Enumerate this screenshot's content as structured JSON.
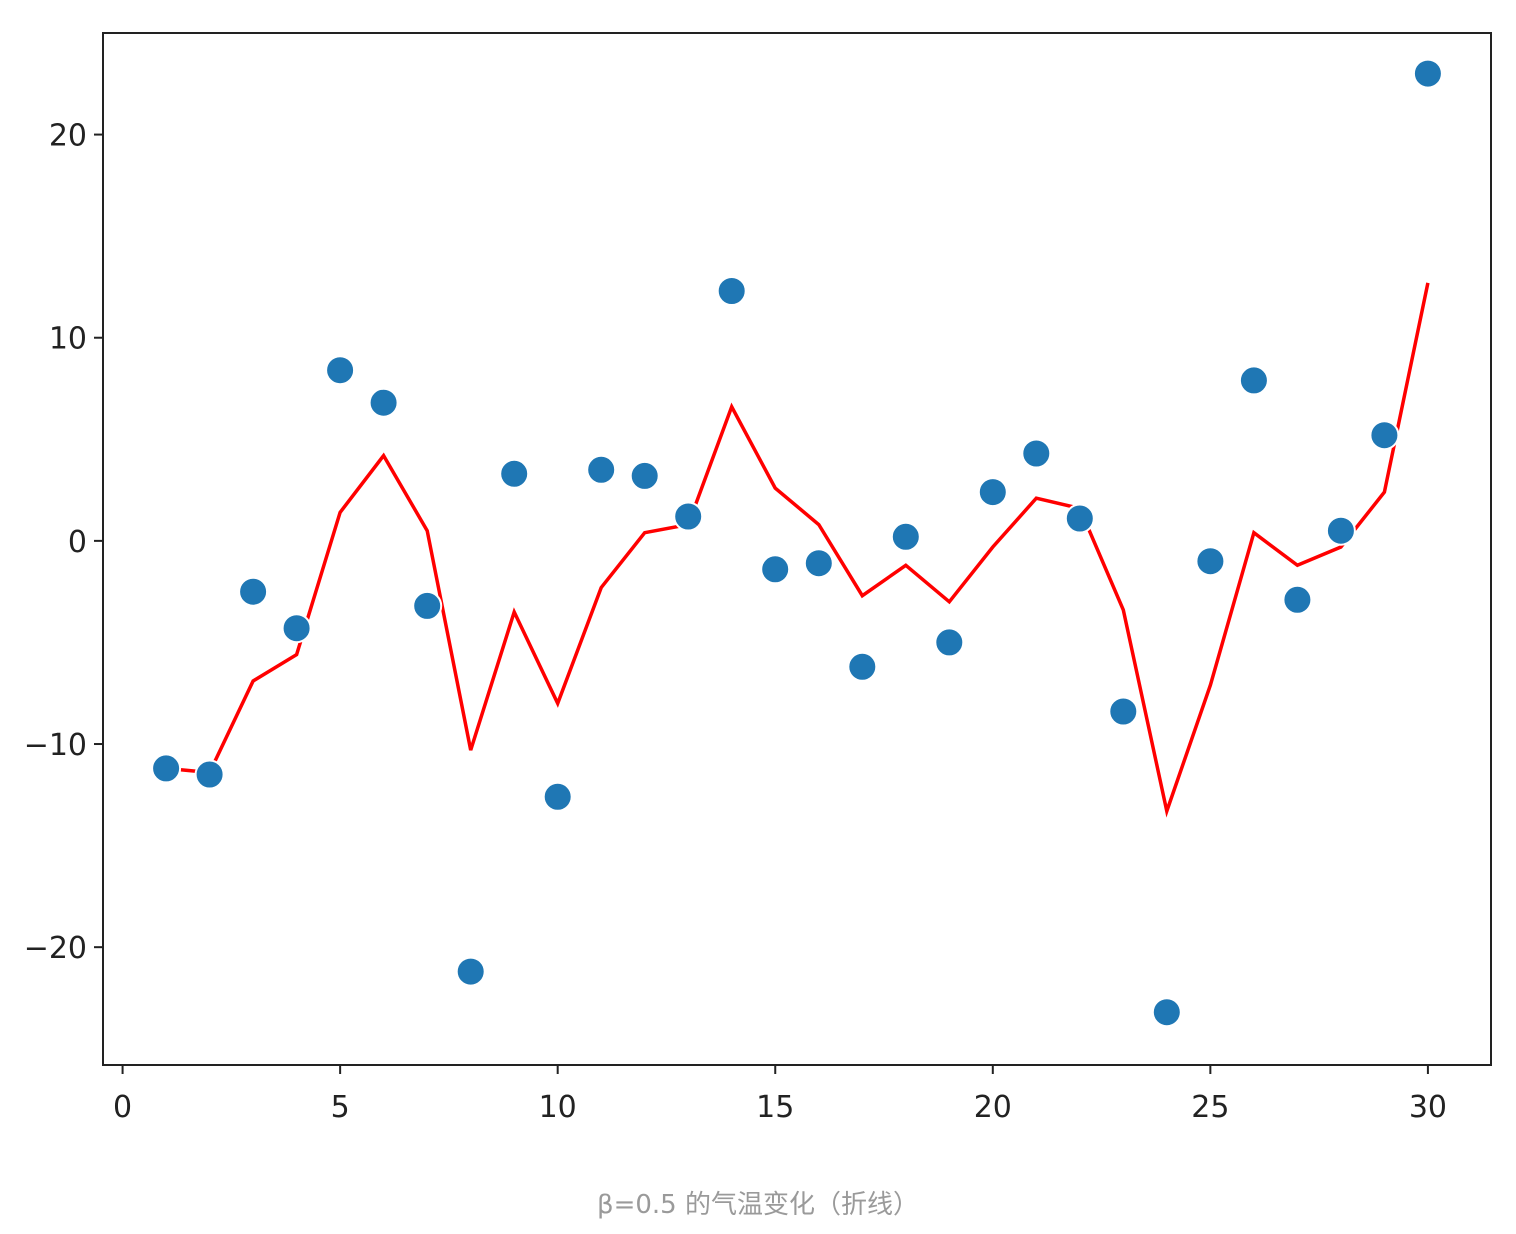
{
  "caption": "β=0.5 的气温变化（折线）",
  "chart_data": {
    "type": "scatter",
    "title": "",
    "xlabel": "",
    "ylabel": "",
    "xlim": [
      -0.45,
      31.45
    ],
    "ylim": [
      -25.8,
      25.0
    ],
    "grid": false,
    "x_ticks": [
      0,
      5,
      10,
      15,
      20,
      25,
      30
    ],
    "x_tick_labels": [
      "0",
      "5",
      "10",
      "15",
      "20",
      "25",
      "30"
    ],
    "y_ticks": [
      -20,
      -10,
      0,
      10,
      20
    ],
    "y_tick_labels": [
      "−20",
      "−10",
      "0",
      "10",
      "20"
    ],
    "series": [
      {
        "kind": "scatter",
        "color": "#1f77b4",
        "x": [
          1,
          2,
          3,
          4,
          5,
          6,
          7,
          8,
          9,
          10,
          11,
          12,
          13,
          14,
          15,
          16,
          17,
          18,
          19,
          20,
          21,
          22,
          23,
          24,
          25,
          26,
          27,
          28,
          29,
          30
        ],
        "values": [
          -11.2,
          -11.5,
          -2.5,
          -4.3,
          8.4,
          6.8,
          -3.2,
          -21.2,
          3.3,
          -12.6,
          3.5,
          3.2,
          1.2,
          12.3,
          -1.4,
          -1.1,
          -6.2,
          0.2,
          -5.0,
          2.4,
          4.3,
          1.1,
          -8.4,
          -23.2,
          -1.0,
          7.9,
          -2.9,
          0.5,
          5.2,
          23.0
        ]
      },
      {
        "kind": "line",
        "color": "#ff0000",
        "x": [
          1,
          2,
          3,
          4,
          5,
          6,
          7,
          8,
          9,
          10,
          11,
          12,
          13,
          14,
          15,
          16,
          17,
          18,
          19,
          20,
          21,
          22,
          23,
          24,
          25,
          26,
          27,
          28,
          29,
          30
        ],
        "values": [
          -11.2,
          -11.4,
          -6.9,
          -5.6,
          1.4,
          4.2,
          0.5,
          -10.3,
          -3.5,
          -8.0,
          -2.3,
          0.4,
          0.8,
          6.6,
          2.6,
          0.8,
          -2.7,
          -1.2,
          -3.0,
          -0.3,
          2.1,
          1.6,
          -3.4,
          -13.3,
          -7.1,
          0.4,
          -1.2,
          -0.3,
          2.4,
          12.7
        ]
      }
    ]
  }
}
